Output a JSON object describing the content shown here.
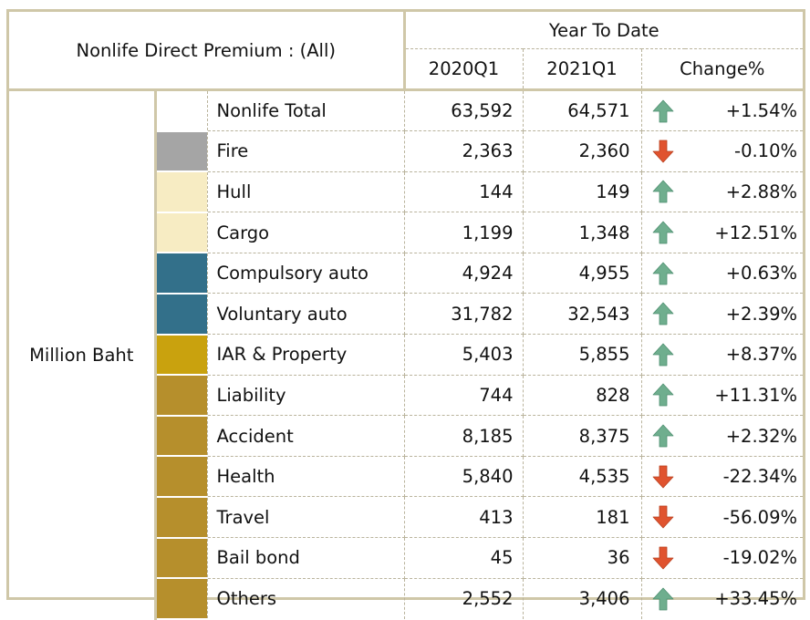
{
  "header": {
    "title": "Nonlife Direct Premium : (All)",
    "group": "Year To Date",
    "col_2020": "2020Q1",
    "col_2021": "2021Q1",
    "col_change": "Change%"
  },
  "unit_label": "Million Baht",
  "colors": {
    "up_arrow": "#6fae8e",
    "down_arrow": "#e0532f"
  },
  "rows": [
    {
      "name": "Nonlife Total",
      "v2020": "63,592",
      "v2021": "64,571",
      "change": "+1.54%",
      "direction": "up",
      "swatch": "#ffffff"
    },
    {
      "name": "Fire",
      "v2020": "2,363",
      "v2021": "2,360",
      "change": "-0.10%",
      "direction": "down",
      "swatch": "#a5a5a5"
    },
    {
      "name": "Hull",
      "v2020": "144",
      "v2021": "149",
      "change": "+2.88%",
      "direction": "up",
      "swatch": "#f7ecc3"
    },
    {
      "name": "Cargo",
      "v2020": "1,199",
      "v2021": "1,348",
      "change": "+12.51%",
      "direction": "up",
      "swatch": "#f7ecc3"
    },
    {
      "name": "Compulsory auto",
      "v2020": "4,924",
      "v2021": "4,955",
      "change": "+0.63%",
      "direction": "up",
      "swatch": "#33708a"
    },
    {
      "name": "Voluntary auto",
      "v2020": "31,782",
      "v2021": "32,543",
      "change": "+2.39%",
      "direction": "up",
      "swatch": "#33708a"
    },
    {
      "name": "IAR & Property",
      "v2020": "5,403",
      "v2021": "5,855",
      "change": "+8.37%",
      "direction": "up",
      "swatch": "#c9a20e"
    },
    {
      "name": "Liability",
      "v2020": "744",
      "v2021": "828",
      "change": "+11.31%",
      "direction": "up",
      "swatch": "#b68f2c"
    },
    {
      "name": "Accident",
      "v2020": "8,185",
      "v2021": "8,375",
      "change": "+2.32%",
      "direction": "up",
      "swatch": "#b68f2c"
    },
    {
      "name": "Health",
      "v2020": "5,840",
      "v2021": "4,535",
      "change": "-22.34%",
      "direction": "down",
      "swatch": "#b68f2c"
    },
    {
      "name": "Travel",
      "v2020": "413",
      "v2021": "181",
      "change": "-56.09%",
      "direction": "down",
      "swatch": "#b68f2c"
    },
    {
      "name": "Bail bond",
      "v2020": "45",
      "v2021": "36",
      "change": "-19.02%",
      "direction": "down",
      "swatch": "#b68f2c"
    },
    {
      "name": "Others",
      "v2020": "2,552",
      "v2021": "3,406",
      "change": "+33.45%",
      "direction": "up",
      "swatch": "#b68f2c"
    }
  ]
}
